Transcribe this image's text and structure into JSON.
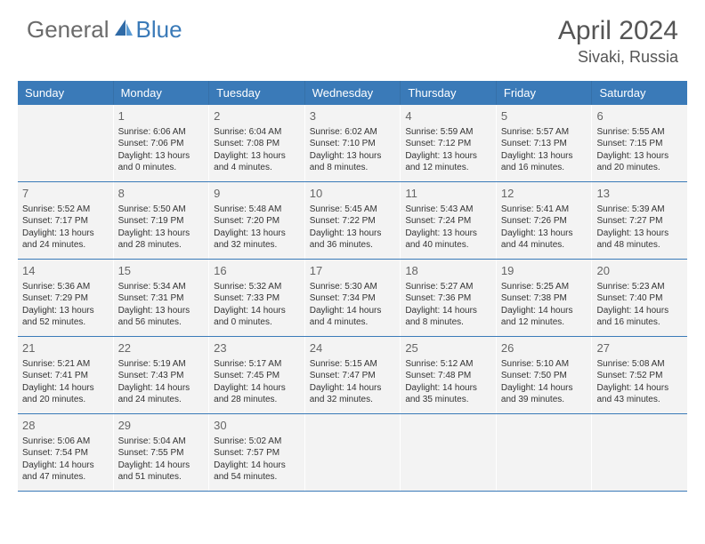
{
  "logo": {
    "text1": "General",
    "text2": "Blue"
  },
  "title": "April 2024",
  "location": "Sivaki, Russia",
  "colors": {
    "header_bg": "#3a7ab8",
    "header_text": "#ffffff",
    "cell_bg": "#f3f3f3",
    "border": "#3a7ab8",
    "logo_gray": "#6b6b6b",
    "logo_blue": "#3a7ab8"
  },
  "day_headers": [
    "Sunday",
    "Monday",
    "Tuesday",
    "Wednesday",
    "Thursday",
    "Friday",
    "Saturday"
  ],
  "weeks": [
    [
      null,
      {
        "n": "1",
        "sr": "Sunrise: 6:06 AM",
        "ss": "Sunset: 7:06 PM",
        "d1": "Daylight: 13 hours",
        "d2": "and 0 minutes."
      },
      {
        "n": "2",
        "sr": "Sunrise: 6:04 AM",
        "ss": "Sunset: 7:08 PM",
        "d1": "Daylight: 13 hours",
        "d2": "and 4 minutes."
      },
      {
        "n": "3",
        "sr": "Sunrise: 6:02 AM",
        "ss": "Sunset: 7:10 PM",
        "d1": "Daylight: 13 hours",
        "d2": "and 8 minutes."
      },
      {
        "n": "4",
        "sr": "Sunrise: 5:59 AM",
        "ss": "Sunset: 7:12 PM",
        "d1": "Daylight: 13 hours",
        "d2": "and 12 minutes."
      },
      {
        "n": "5",
        "sr": "Sunrise: 5:57 AM",
        "ss": "Sunset: 7:13 PM",
        "d1": "Daylight: 13 hours",
        "d2": "and 16 minutes."
      },
      {
        "n": "6",
        "sr": "Sunrise: 5:55 AM",
        "ss": "Sunset: 7:15 PM",
        "d1": "Daylight: 13 hours",
        "d2": "and 20 minutes."
      }
    ],
    [
      {
        "n": "7",
        "sr": "Sunrise: 5:52 AM",
        "ss": "Sunset: 7:17 PM",
        "d1": "Daylight: 13 hours",
        "d2": "and 24 minutes."
      },
      {
        "n": "8",
        "sr": "Sunrise: 5:50 AM",
        "ss": "Sunset: 7:19 PM",
        "d1": "Daylight: 13 hours",
        "d2": "and 28 minutes."
      },
      {
        "n": "9",
        "sr": "Sunrise: 5:48 AM",
        "ss": "Sunset: 7:20 PM",
        "d1": "Daylight: 13 hours",
        "d2": "and 32 minutes."
      },
      {
        "n": "10",
        "sr": "Sunrise: 5:45 AM",
        "ss": "Sunset: 7:22 PM",
        "d1": "Daylight: 13 hours",
        "d2": "and 36 minutes."
      },
      {
        "n": "11",
        "sr": "Sunrise: 5:43 AM",
        "ss": "Sunset: 7:24 PM",
        "d1": "Daylight: 13 hours",
        "d2": "and 40 minutes."
      },
      {
        "n": "12",
        "sr": "Sunrise: 5:41 AM",
        "ss": "Sunset: 7:26 PM",
        "d1": "Daylight: 13 hours",
        "d2": "and 44 minutes."
      },
      {
        "n": "13",
        "sr": "Sunrise: 5:39 AM",
        "ss": "Sunset: 7:27 PM",
        "d1": "Daylight: 13 hours",
        "d2": "and 48 minutes."
      }
    ],
    [
      {
        "n": "14",
        "sr": "Sunrise: 5:36 AM",
        "ss": "Sunset: 7:29 PM",
        "d1": "Daylight: 13 hours",
        "d2": "and 52 minutes."
      },
      {
        "n": "15",
        "sr": "Sunrise: 5:34 AM",
        "ss": "Sunset: 7:31 PM",
        "d1": "Daylight: 13 hours",
        "d2": "and 56 minutes."
      },
      {
        "n": "16",
        "sr": "Sunrise: 5:32 AM",
        "ss": "Sunset: 7:33 PM",
        "d1": "Daylight: 14 hours",
        "d2": "and 0 minutes."
      },
      {
        "n": "17",
        "sr": "Sunrise: 5:30 AM",
        "ss": "Sunset: 7:34 PM",
        "d1": "Daylight: 14 hours",
        "d2": "and 4 minutes."
      },
      {
        "n": "18",
        "sr": "Sunrise: 5:27 AM",
        "ss": "Sunset: 7:36 PM",
        "d1": "Daylight: 14 hours",
        "d2": "and 8 minutes."
      },
      {
        "n": "19",
        "sr": "Sunrise: 5:25 AM",
        "ss": "Sunset: 7:38 PM",
        "d1": "Daylight: 14 hours",
        "d2": "and 12 minutes."
      },
      {
        "n": "20",
        "sr": "Sunrise: 5:23 AM",
        "ss": "Sunset: 7:40 PM",
        "d1": "Daylight: 14 hours",
        "d2": "and 16 minutes."
      }
    ],
    [
      {
        "n": "21",
        "sr": "Sunrise: 5:21 AM",
        "ss": "Sunset: 7:41 PM",
        "d1": "Daylight: 14 hours",
        "d2": "and 20 minutes."
      },
      {
        "n": "22",
        "sr": "Sunrise: 5:19 AM",
        "ss": "Sunset: 7:43 PM",
        "d1": "Daylight: 14 hours",
        "d2": "and 24 minutes."
      },
      {
        "n": "23",
        "sr": "Sunrise: 5:17 AM",
        "ss": "Sunset: 7:45 PM",
        "d1": "Daylight: 14 hours",
        "d2": "and 28 minutes."
      },
      {
        "n": "24",
        "sr": "Sunrise: 5:15 AM",
        "ss": "Sunset: 7:47 PM",
        "d1": "Daylight: 14 hours",
        "d2": "and 32 minutes."
      },
      {
        "n": "25",
        "sr": "Sunrise: 5:12 AM",
        "ss": "Sunset: 7:48 PM",
        "d1": "Daylight: 14 hours",
        "d2": "and 35 minutes."
      },
      {
        "n": "26",
        "sr": "Sunrise: 5:10 AM",
        "ss": "Sunset: 7:50 PM",
        "d1": "Daylight: 14 hours",
        "d2": "and 39 minutes."
      },
      {
        "n": "27",
        "sr": "Sunrise: 5:08 AM",
        "ss": "Sunset: 7:52 PM",
        "d1": "Daylight: 14 hours",
        "d2": "and 43 minutes."
      }
    ],
    [
      {
        "n": "28",
        "sr": "Sunrise: 5:06 AM",
        "ss": "Sunset: 7:54 PM",
        "d1": "Daylight: 14 hours",
        "d2": "and 47 minutes."
      },
      {
        "n": "29",
        "sr": "Sunrise: 5:04 AM",
        "ss": "Sunset: 7:55 PM",
        "d1": "Daylight: 14 hours",
        "d2": "and 51 minutes."
      },
      {
        "n": "30",
        "sr": "Sunrise: 5:02 AM",
        "ss": "Sunset: 7:57 PM",
        "d1": "Daylight: 14 hours",
        "d2": "and 54 minutes."
      },
      null,
      null,
      null,
      null
    ]
  ]
}
